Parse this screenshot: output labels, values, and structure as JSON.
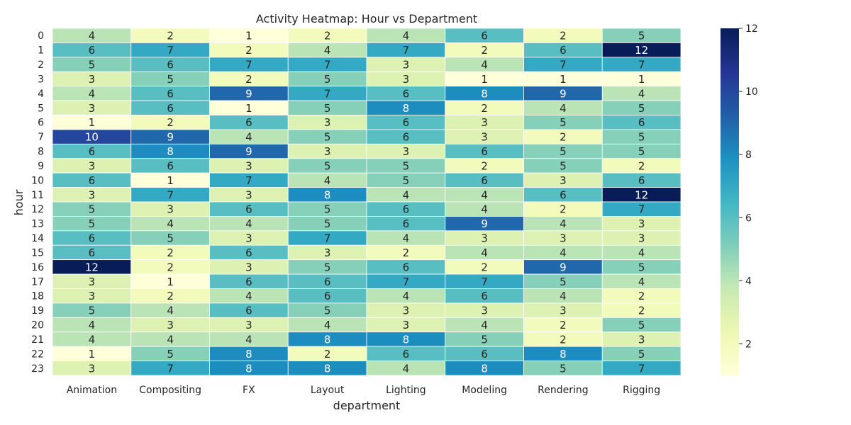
{
  "chart_data": {
    "type": "heatmap",
    "title": "Activity Heatmap: Hour vs Department",
    "xlabel": "department",
    "ylabel": "hour",
    "x_categories": [
      "Animation",
      "Compositing",
      "FX",
      "Layout",
      "Lighting",
      "Modeling",
      "Rendering",
      "Rigging"
    ],
    "y_categories": [
      "0",
      "1",
      "2",
      "3",
      "4",
      "5",
      "6",
      "7",
      "8",
      "9",
      "10",
      "11",
      "12",
      "13",
      "14",
      "15",
      "16",
      "17",
      "18",
      "19",
      "20",
      "21",
      "22",
      "23"
    ],
    "values": [
      [
        4,
        2,
        1,
        2,
        4,
        6,
        2,
        5
      ],
      [
        6,
        7,
        2,
        4,
        7,
        2,
        6,
        12
      ],
      [
        5,
        6,
        7,
        7,
        3,
        4,
        7,
        7
      ],
      [
        3,
        5,
        2,
        5,
        3,
        1,
        1,
        1
      ],
      [
        4,
        6,
        9,
        7,
        6,
        8,
        9,
        4
      ],
      [
        3,
        6,
        1,
        5,
        8,
        2,
        4,
        5
      ],
      [
        1,
        2,
        6,
        3,
        6,
        3,
        5,
        6
      ],
      [
        10,
        9,
        4,
        5,
        6,
        3,
        2,
        5
      ],
      [
        6,
        8,
        9,
        3,
        3,
        6,
        5,
        5
      ],
      [
        3,
        6,
        3,
        5,
        5,
        2,
        5,
        2
      ],
      [
        6,
        1,
        7,
        4,
        5,
        6,
        3,
        6
      ],
      [
        3,
        7,
        3,
        8,
        4,
        4,
        6,
        12
      ],
      [
        5,
        3,
        6,
        5,
        6,
        4,
        2,
        7
      ],
      [
        5,
        4,
        4,
        5,
        6,
        9,
        4,
        3
      ],
      [
        6,
        5,
        3,
        7,
        4,
        3,
        3,
        3
      ],
      [
        6,
        2,
        6,
        3,
        2,
        4,
        4,
        4
      ],
      [
        12,
        2,
        3,
        5,
        6,
        2,
        9,
        5
      ],
      [
        3,
        1,
        6,
        6,
        7,
        7,
        5,
        4
      ],
      [
        3,
        2,
        4,
        6,
        4,
        6,
        4,
        2
      ],
      [
        5,
        4,
        6,
        5,
        3,
        3,
        3,
        2
      ],
      [
        4,
        3,
        3,
        4,
        3,
        4,
        2,
        5
      ],
      [
        4,
        4,
        4,
        8,
        8,
        5,
        2,
        3
      ],
      [
        1,
        5,
        8,
        2,
        6,
        6,
        8,
        5
      ],
      [
        3,
        7,
        8,
        8,
        4,
        8,
        5,
        7
      ]
    ],
    "colormap": "YlGnBu",
    "vmin": 1,
    "vmax": 12,
    "colorbar_ticks": [
      2,
      4,
      6,
      8,
      10,
      12
    ],
    "annotated": true,
    "colors": {
      "low": "#ffffd9",
      "high": "#081d58",
      "cell_border": "#ffffff",
      "text_dark": "#262626",
      "text_light": "#ffffff"
    }
  }
}
